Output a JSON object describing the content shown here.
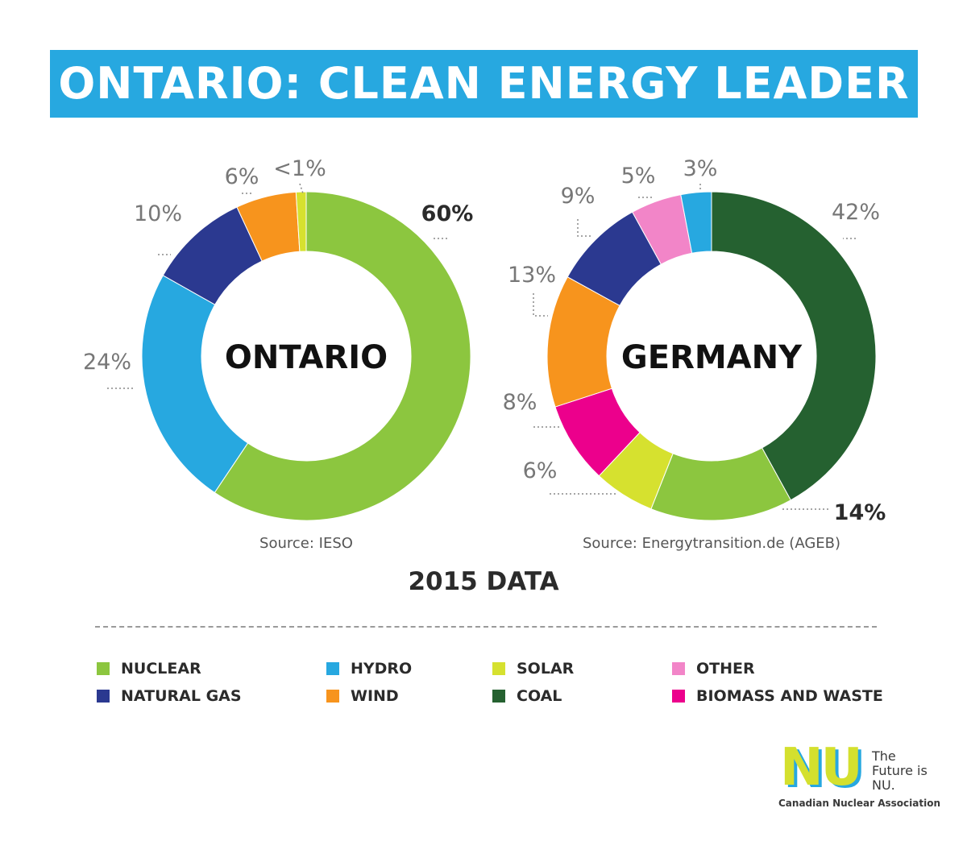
{
  "banner": {
    "title": "ONTARIO: CLEAN ENERGY LEADER"
  },
  "colors": {
    "banner": "#27a8e0",
    "nuclear": "#8cc63f",
    "hydro": "#27a8e0",
    "solar": "#d6e12f",
    "other": "#f285c8",
    "natural_gas": "#2b3990",
    "wind": "#f7941d",
    "coal": "#256130",
    "biomass": "#ec008c"
  },
  "chart_data": [
    {
      "type": "pie",
      "center_label": "ONTARIO",
      "source": "Source: IESO",
      "slices": [
        {
          "category": "NUCLEAR",
          "value": 60,
          "label": "60%",
          "color": "#8cc63f",
          "emphasis": true
        },
        {
          "category": "HYDRO",
          "value": 24,
          "label": "24%",
          "color": "#27a8e0"
        },
        {
          "category": "NATURAL GAS",
          "value": 10,
          "label": "10%",
          "color": "#2b3990"
        },
        {
          "category": "WIND",
          "value": 6,
          "label": "6%",
          "color": "#f7941d"
        },
        {
          "category": "SOLAR",
          "value": 1,
          "label": "<1%",
          "color": "#d6e12f"
        }
      ]
    },
    {
      "type": "pie",
      "center_label": "GERMANY",
      "source": "Source: Energytransition.de (AGEB)",
      "slices": [
        {
          "category": "COAL",
          "value": 42,
          "label": "42%",
          "color": "#256130"
        },
        {
          "category": "NUCLEAR",
          "value": 14,
          "label": "14%",
          "color": "#8cc63f",
          "emphasis": true
        },
        {
          "category": "SOLAR",
          "value": 6,
          "label": "6%",
          "color": "#d6e12f"
        },
        {
          "category": "BIOMASS AND WASTE",
          "value": 8,
          "label": "8%",
          "color": "#ec008c"
        },
        {
          "category": "WIND",
          "value": 13,
          "label": "13%",
          "color": "#f7941d"
        },
        {
          "category": "NATURAL GAS",
          "value": 9,
          "label": "9%",
          "color": "#2b3990"
        },
        {
          "category": "OTHER",
          "value": 5,
          "label": "5%",
          "color": "#f285c8"
        },
        {
          "category": "HYDRO",
          "value": 3,
          "label": "3%",
          "color": "#27a8e0"
        }
      ]
    }
  ],
  "year_label": "2015 DATA",
  "legend": [
    {
      "label": "NUCLEAR",
      "color": "#8cc63f"
    },
    {
      "label": "NATURAL GAS",
      "color": "#2b3990"
    },
    {
      "label": "HYDRO",
      "color": "#27a8e0"
    },
    {
      "label": "WIND",
      "color": "#f7941d"
    },
    {
      "label": "SOLAR",
      "color": "#d6e12f"
    },
    {
      "label": "COAL",
      "color": "#256130"
    },
    {
      "label": "OTHER",
      "color": "#f285c8"
    },
    {
      "label": "BIOMASS AND WASTE",
      "color": "#ec008c"
    }
  ],
  "logo": {
    "mark": "NU",
    "tagline": "The Future is NU.",
    "org": "Canadian Nuclear Association"
  }
}
